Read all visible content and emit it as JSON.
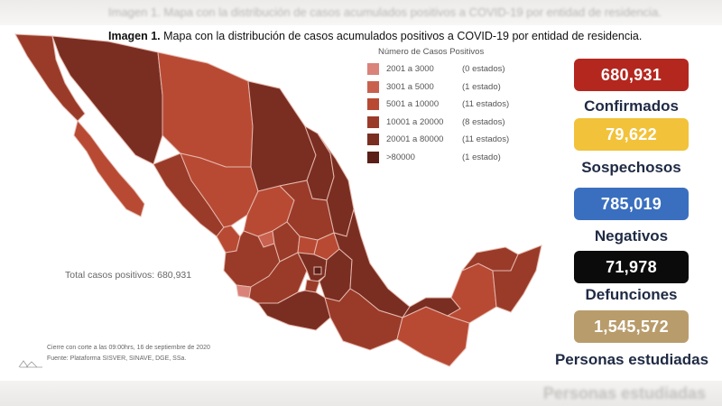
{
  "caption": {
    "bold": "Imagen 1.",
    "text": " Mapa con la distribución de casos acumulados positivos a COVID-19 por entidad de residencia."
  },
  "ghost_top_text": "Imagen 1. Mapa con la distribución de casos acumulados positivos a COVID-19 por entidad de residencia.",
  "ghost_bottom_text": "Personas estudiadas",
  "legend": {
    "title": "Número de Casos Positivos",
    "items": [
      {
        "range": "2001 a    3000",
        "count": "(0 estados)",
        "color": "#d9837a"
      },
      {
        "range": "3001 a    5000",
        "count": "(1 estado)",
        "color": "#c9614f"
      },
      {
        "range": "5001 a  10000",
        "count": "(11 estados)",
        "color": "#b84a34"
      },
      {
        "range": "10001 a  20000",
        "count": "(8 estados)",
        "color": "#9a3b2a"
      },
      {
        "range": "20001 a  80000",
        "count": "(11 estados)",
        "color": "#7a2e22"
      },
      {
        "range": ">80000",
        "count": "(1 estado)",
        "color": "#5a1f18"
      }
    ]
  },
  "total_text": "Total casos positivos: 680,931",
  "footer": {
    "line1": "Cierre con corte a las 09:00hrs, 16 de septiembre de 2020",
    "line2": "Fuente: Plataforma SISVER, SINAVE, DGE, SSa."
  },
  "stats": [
    {
      "value": "680,931",
      "label": "Confirmados",
      "color": "#b4271f"
    },
    {
      "value": "79,622",
      "label": "Sospechosos",
      "color": "#f2c23a"
    },
    {
      "value": "785,019",
      "label": "Negativos",
      "color": "#3a6fbf"
    },
    {
      "value": "71,978",
      "label": "Defunciones",
      "color": "#0b0b0b"
    },
    {
      "value": "1,545,572",
      "label": "Personas estudiadas",
      "color": "#b99c6c"
    }
  ],
  "map_colors": {
    "darkest": "#5a1f18",
    "dark": "#7a2e22",
    "mid": "#9a3b2a",
    "light": "#b84a34",
    "lighter": "#c9614f",
    "border": "#e6b8ad"
  }
}
